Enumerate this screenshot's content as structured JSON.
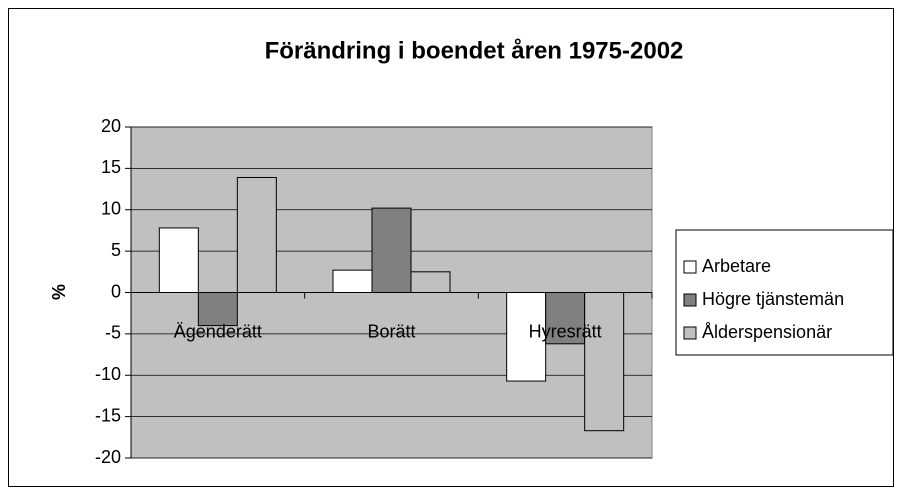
{
  "chart_data": {
    "type": "bar",
    "title": "Förändring i boendet åren 1975-2002",
    "y_label": "%",
    "categories": [
      "Ägenderätt",
      "Borätt",
      "Hyresrätt"
    ],
    "series": [
      {
        "name": "Arbetare",
        "color": "#ffffff",
        "values": [
          7.8,
          2.7,
          -10.7
        ]
      },
      {
        "name": "Högre tjänstemän",
        "color": "#808080",
        "values": [
          -4,
          10.2,
          -6.2
        ]
      },
      {
        "name": "Ålderspensionär",
        "color": "#c0c0c0",
        "values": [
          13.9,
          2.5,
          -16.7
        ]
      }
    ],
    "ylim": [
      -20,
      20
    ],
    "yticks": [
      -20,
      -15,
      -10,
      -5,
      0,
      5,
      10,
      15,
      20
    ],
    "grid": true,
    "legend": "right"
  }
}
